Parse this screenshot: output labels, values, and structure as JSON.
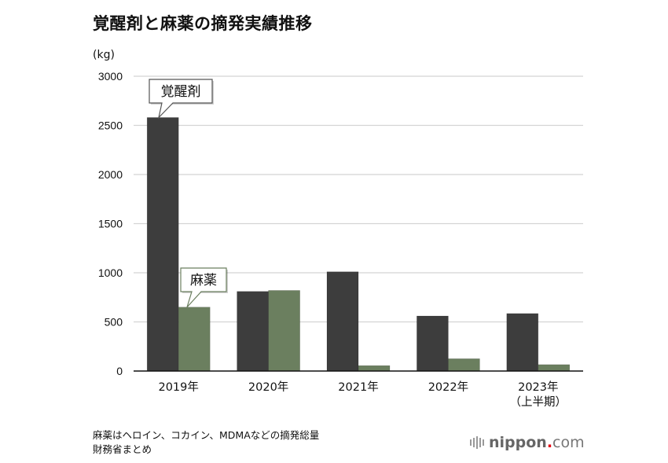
{
  "title": "覚醒剤と麻薬の摘発実績推移",
  "notes": [
    "麻薬はヘロイン、コカイン、MDMAなどの摘発総量",
    "財務省まとめ"
  ],
  "logo": {
    "name": "nippon",
    "dot": ".",
    "tld": "com"
  },
  "colors": {
    "stimulants": "#3d3d3d",
    "narcotics": "#6b7f5f",
    "grid": "#d4d4d4",
    "axis": "#111111"
  },
  "chart_data": {
    "type": "bar",
    "title": "覚醒剤と麻薬の摘発実績推移",
    "ylabel": "(kg)",
    "xlabel": "",
    "ylim": [
      0,
      3000
    ],
    "yticks": [
      0,
      500,
      1000,
      1500,
      2000,
      2500,
      3000
    ],
    "grid": true,
    "categories": [
      {
        "line1": "2019年",
        "line2": ""
      },
      {
        "line1": "2020年",
        "line2": ""
      },
      {
        "line1": "2021年",
        "line2": ""
      },
      {
        "line1": "2022年",
        "line2": ""
      },
      {
        "line1": "2023年",
        "line2": "（上半期）"
      }
    ],
    "series": [
      {
        "name": "覚醒剤",
        "color": "#3d3d3d",
        "values": [
          2580,
          810,
          1010,
          560,
          585
        ]
      },
      {
        "name": "麻薬",
        "color": "#6b7f5f",
        "values": [
          650,
          820,
          55,
          125,
          65
        ]
      }
    ],
    "callouts": [
      {
        "text": "覚醒剤",
        "series": 0,
        "category": 0
      },
      {
        "text": "麻薬",
        "series": 1,
        "category": 0
      }
    ]
  }
}
